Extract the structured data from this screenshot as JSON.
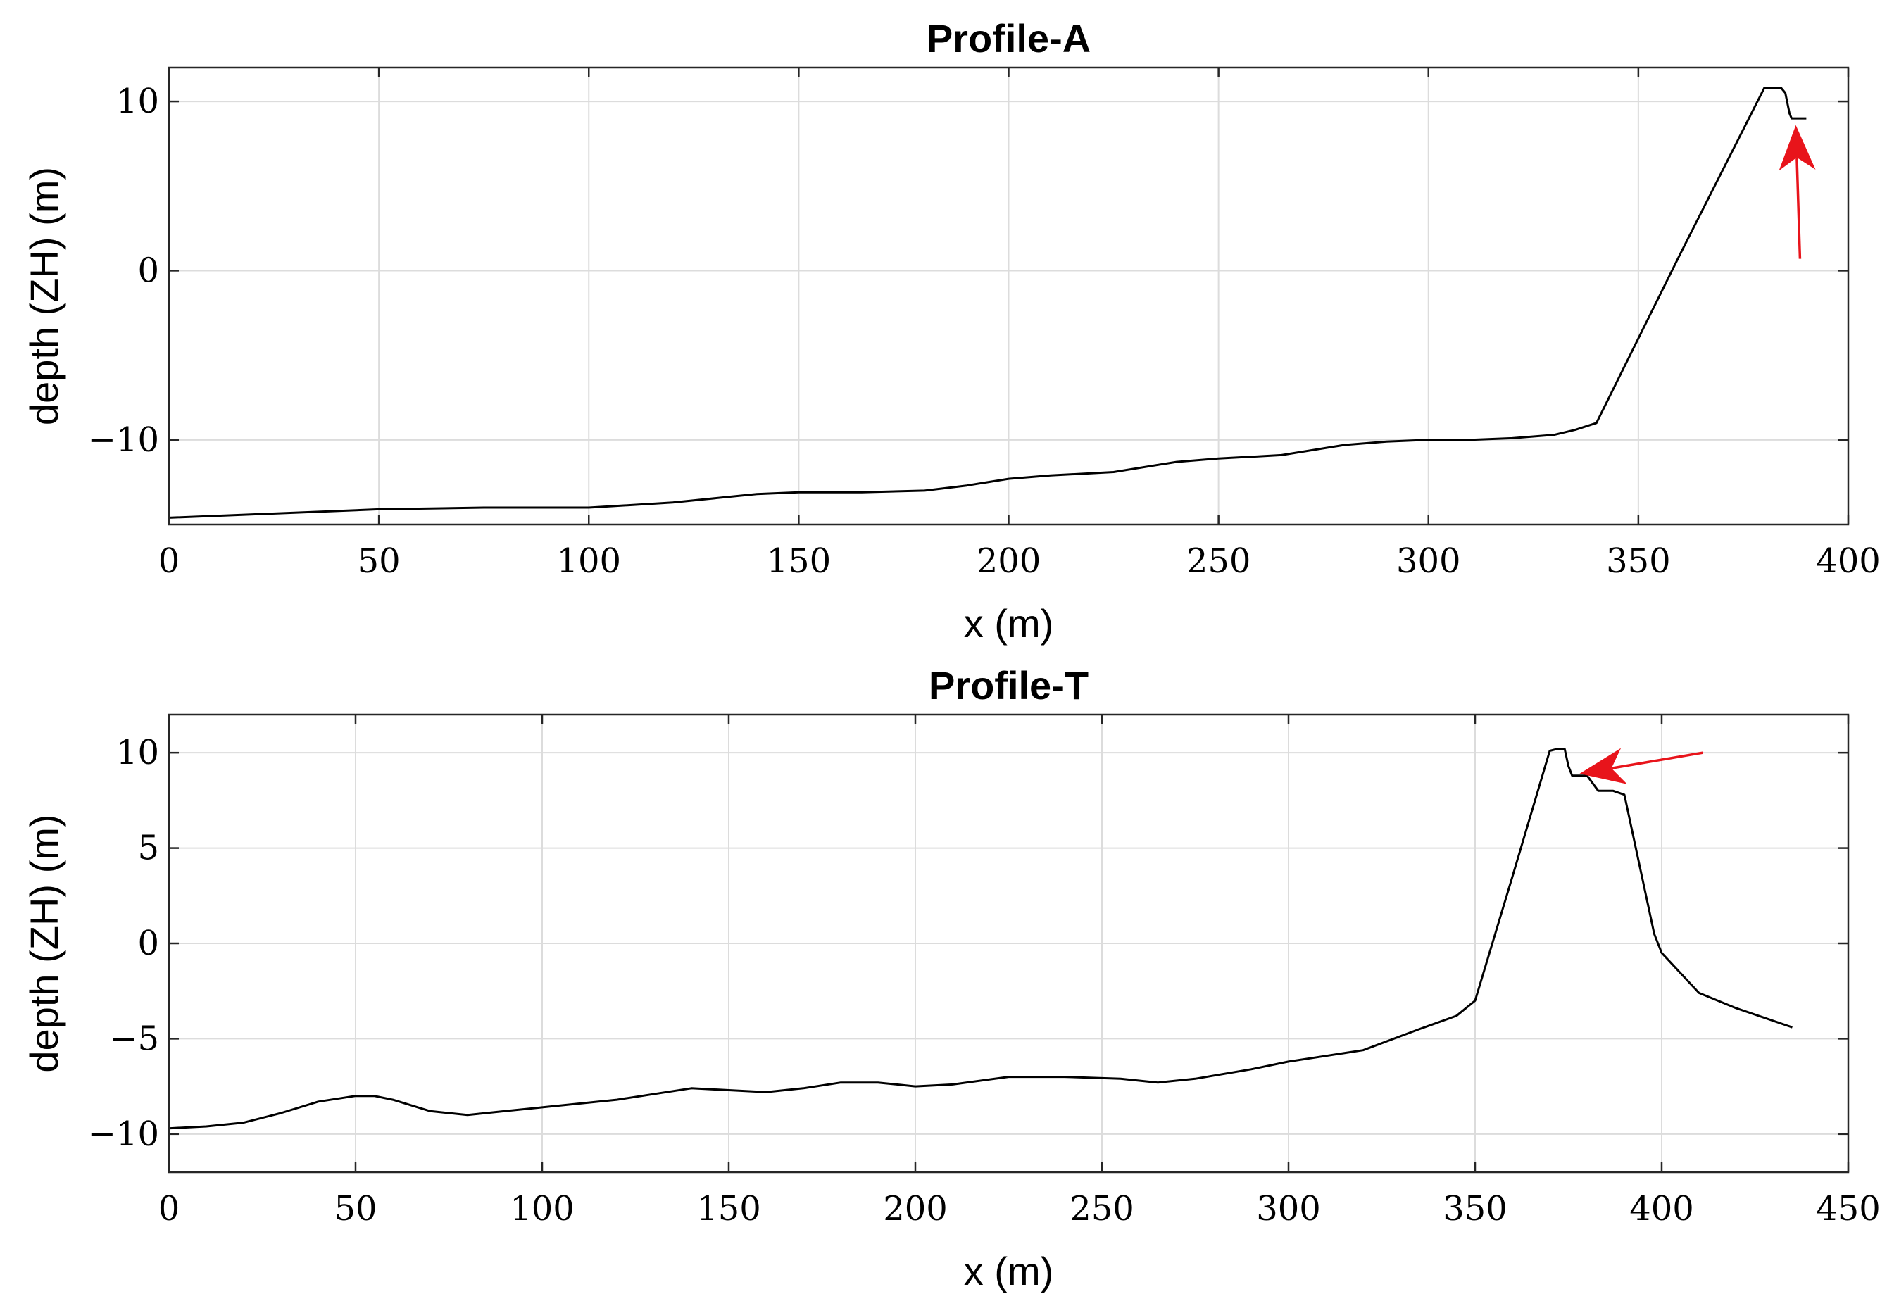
{
  "chart_data": [
    {
      "type": "line",
      "title": "Profile-A",
      "xlabel": "x (m)",
      "ylabel": "depth (ZH) (m)",
      "xlim": [
        0,
        400
      ],
      "ylim": [
        -15,
        12
      ],
      "xticks": [
        0,
        50,
        100,
        150,
        200,
        250,
        300,
        350,
        400
      ],
      "yticks": [
        -10,
        0,
        10
      ],
      "ytick_labels": [
        "−10",
        "0",
        "10"
      ],
      "grid": true,
      "line_color": "#000000",
      "annotation_color": "#e8141b",
      "series": [
        {
          "x": [
            0,
            20,
            50,
            75,
            100,
            120,
            140,
            150,
            165,
            180,
            190,
            200,
            210,
            225,
            240,
            250,
            265,
            280,
            290,
            300,
            310,
            320,
            330,
            335,
            340,
            360,
            380,
            384,
            385,
            386,
            386.5,
            390
          ],
          "y": [
            -14.6,
            -14.4,
            -14.1,
            -14.0,
            -14.0,
            -13.7,
            -13.2,
            -13.1,
            -13.1,
            -13.0,
            -12.7,
            -12.3,
            -12.1,
            -11.9,
            -11.3,
            -11.1,
            -10.9,
            -10.3,
            -10.1,
            -10.0,
            -10.0,
            -9.9,
            -9.7,
            -9.4,
            -9.0,
            1.0,
            10.8,
            10.8,
            10.5,
            9.3,
            9.0,
            9.0
          ]
        }
      ],
      "annotations": [
        {
          "type": "arrow",
          "from": [
            388.5,
            0.7
          ],
          "to": [
            387.5,
            8.6
          ]
        }
      ]
    },
    {
      "type": "line",
      "title": "Profile-T",
      "xlabel": "x (m)",
      "ylabel": "depth (ZH) (m)",
      "xlim": [
        0,
        450
      ],
      "ylim": [
        -12,
        12
      ],
      "xticks": [
        0,
        50,
        100,
        150,
        200,
        250,
        300,
        350,
        400,
        450
      ],
      "yticks": [
        -10,
        -5,
        0,
        5,
        10
      ],
      "ytick_labels": [
        "−10",
        "−5",
        "0",
        "5",
        "10"
      ],
      "grid": true,
      "line_color": "#000000",
      "annotation_color": "#e8141b",
      "series": [
        {
          "x": [
            0,
            10,
            20,
            30,
            40,
            50,
            55,
            60,
            70,
            80,
            90,
            100,
            120,
            140,
            150,
            160,
            170,
            180,
            190,
            200,
            210,
            225,
            240,
            255,
            265,
            275,
            290,
            300,
            310,
            320,
            335,
            345,
            350,
            360,
            370,
            372,
            374,
            375,
            376,
            380,
            383,
            385,
            387,
            390,
            398,
            400,
            410,
            420,
            435
          ],
          "y": [
            -9.7,
            -9.6,
            -9.4,
            -8.9,
            -8.3,
            -8.0,
            -8.0,
            -8.2,
            -8.8,
            -9.0,
            -8.8,
            -8.6,
            -8.2,
            -7.6,
            -7.7,
            -7.8,
            -7.6,
            -7.3,
            -7.3,
            -7.5,
            -7.4,
            -7.0,
            -7.0,
            -7.1,
            -7.3,
            -7.1,
            -6.6,
            -6.2,
            -5.9,
            -5.6,
            -4.5,
            -3.8,
            -3.0,
            3.5,
            10.1,
            10.2,
            10.2,
            9.3,
            8.8,
            8.8,
            8.0,
            8.0,
            8.0,
            7.8,
            0.5,
            -0.5,
            -2.6,
            -3.4,
            -4.4
          ]
        }
      ],
      "annotations": [
        {
          "type": "arrow",
          "from": [
            411,
            10.0
          ],
          "to": [
            378,
            8.9
          ]
        }
      ]
    }
  ]
}
